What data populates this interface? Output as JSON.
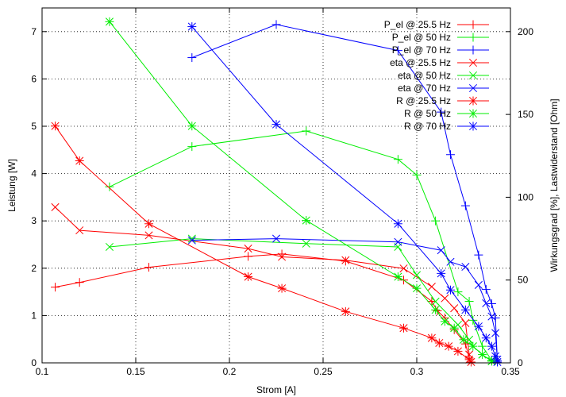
{
  "chart_data": {
    "type": "line",
    "title": "",
    "xlabel": "Strom [A]",
    "ylabel": "Leistung [W]",
    "y2label": "Wirkungsgrad [%], Lastwiderstand [Ohm]",
    "xlim": [
      0.1,
      0.35
    ],
    "ylim": [
      0,
      7.5
    ],
    "y2lim": [
      0,
      214.3
    ],
    "xticks": [
      "0.1",
      "0.15",
      "0.2",
      "0.25",
      "0.3",
      "0.35"
    ],
    "yticks": [
      "0",
      "1",
      "2",
      "3",
      "4",
      "5",
      "6",
      "7"
    ],
    "y2ticks": [
      "0",
      "50",
      "100",
      "150",
      "200"
    ],
    "grid": true,
    "legend_position": "top-right",
    "series": [
      {
        "name": "P_el @ 25.5 Hz",
        "color": "#ff0000",
        "marker": "plus",
        "axis": "left",
        "x": [
          0.107,
          0.12,
          0.157,
          0.21,
          0.228,
          0.262,
          0.293,
          0.308,
          0.311,
          0.315,
          0.32,
          0.326,
          0.328
        ],
        "y": [
          1.6,
          1.7,
          2.02,
          2.25,
          2.3,
          2.15,
          1.75,
          1.3,
          1.1,
          0.95,
          0.7,
          0.4,
          0.1
        ]
      },
      {
        "name": "P_el @ 50 Hz",
        "color": "#00ee00",
        "marker": "plus",
        "axis": "left",
        "x": [
          0.136,
          0.18,
          0.241,
          0.29,
          0.3,
          0.31,
          0.322,
          0.328,
          0.33,
          0.335,
          0.34
        ],
        "y": [
          3.72,
          4.57,
          4.9,
          4.3,
          3.97,
          3.0,
          1.5,
          1.3,
          0.9,
          0.35,
          0.05
        ]
      },
      {
        "name": "P_el @ 70 Hz",
        "color": "#0000ff",
        "marker": "plus",
        "axis": "left",
        "x": [
          0.18,
          0.225,
          0.29,
          0.313,
          0.318,
          0.326,
          0.333,
          0.337,
          0.34,
          0.342,
          0.343
        ],
        "y": [
          6.45,
          7.15,
          6.6,
          5.3,
          4.4,
          3.32,
          2.28,
          1.55,
          1.25,
          0.95,
          0.05
        ]
      },
      {
        "name": "eta @ 25.5 Hz",
        "color": "#ff0000",
        "marker": "x",
        "axis": "right",
        "x": [
          0.107,
          0.12,
          0.157,
          0.21,
          0.228,
          0.262,
          0.293,
          0.308,
          0.315,
          0.32,
          0.326,
          0.328
        ],
        "y": [
          94,
          80,
          77,
          69,
          64,
          62,
          57,
          46,
          39,
          33,
          24,
          5
        ]
      },
      {
        "name": "eta @ 50 Hz",
        "color": "#00ee00",
        "marker": "x",
        "axis": "right",
        "x": [
          0.136,
          0.18,
          0.241,
          0.29,
          0.3,
          0.31,
          0.322,
          0.328,
          0.33,
          0.335,
          0.34
        ],
        "y": [
          70,
          75,
          72,
          70,
          53,
          37,
          23,
          14,
          10,
          5,
          1
        ]
      },
      {
        "name": "eta @ 70 Hz",
        "color": "#0000ff",
        "marker": "x",
        "axis": "right",
        "x": [
          0.18,
          0.225,
          0.29,
          0.313,
          0.318,
          0.326,
          0.333,
          0.337,
          0.34,
          0.342,
          0.343
        ],
        "y": [
          74,
          75,
          73,
          68,
          61,
          58,
          47,
          36,
          28,
          18,
          2
        ]
      },
      {
        "name": "R @ 25.5 Hz",
        "color": "#ff0000",
        "marker": "star",
        "axis": "right",
        "x": [
          0.107,
          0.12,
          0.157,
          0.21,
          0.228,
          0.262,
          0.293,
          0.308,
          0.312,
          0.317,
          0.322,
          0.328,
          0.329
        ],
        "y": [
          143,
          122,
          84,
          52,
          45,
          31,
          21,
          15,
          12,
          10,
          7,
          2,
          0.5
        ]
      },
      {
        "name": "R @ 50 Hz",
        "color": "#00ee00",
        "marker": "star",
        "axis": "right",
        "x": [
          0.136,
          0.18,
          0.241,
          0.29,
          0.3,
          0.31,
          0.315,
          0.32,
          0.325,
          0.33,
          0.335,
          0.34
        ],
        "y": [
          206,
          143,
          86,
          52,
          45,
          32,
          25,
          21,
          14,
          10,
          5,
          1
        ]
      },
      {
        "name": "R @ 70 Hz",
        "color": "#0000ff",
        "marker": "star",
        "axis": "right",
        "x": [
          0.18,
          0.225,
          0.29,
          0.313,
          0.318,
          0.326,
          0.333,
          0.337,
          0.34,
          0.342,
          0.343
        ],
        "y": [
          203,
          144,
          84,
          54,
          44,
          32,
          22,
          15,
          10,
          4,
          0.5
        ]
      }
    ]
  }
}
